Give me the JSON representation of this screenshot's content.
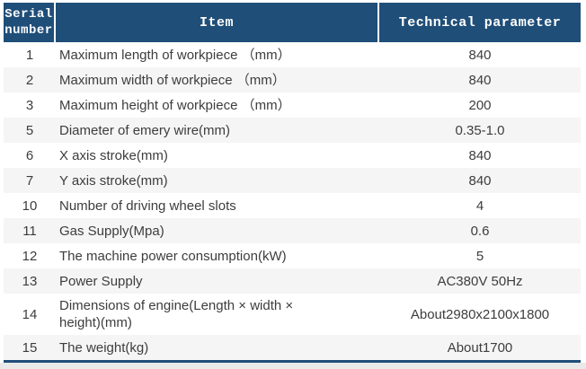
{
  "table": {
    "columns": {
      "serial": "Serial number",
      "item": "Item",
      "value": "Technical parameter"
    },
    "rows": [
      {
        "serial": "1",
        "item": "Maximum length of workpiece （mm）",
        "value": "840"
      },
      {
        "serial": "2",
        "item": "Maximum width of workpiece （mm）",
        "value": "840"
      },
      {
        "serial": "3",
        "item": "Maximum height of workpiece （mm）",
        "value": "200"
      },
      {
        "serial": "5",
        "item": "Diameter of emery wire(mm)",
        "value": "0.35-1.0"
      },
      {
        "serial": "6",
        "item": "X axis stroke(mm)",
        "value": "840"
      },
      {
        "serial": "7",
        "item": "Y axis stroke(mm)",
        "value": "840"
      },
      {
        "serial": "10",
        "item": "Number of driving wheel slots",
        "value": "4"
      },
      {
        "serial": "11",
        "item": "Gas Supply(Mpa)",
        "value": "0.6"
      },
      {
        "serial": "12",
        "item": "The machine power consumption(kW)",
        "value": "5"
      },
      {
        "serial": "13",
        "item": "Power Supply",
        "value": "AC380V 50Hz"
      },
      {
        "serial": "14",
        "item": "Dimensions of engine(Length × width × height)(mm)",
        "value": "About2980x2100x1800"
      },
      {
        "serial": "15",
        "item": "The weight(kg)",
        "value": "About1700"
      }
    ]
  },
  "colors": {
    "header_bg": "#1f4e79",
    "header_text": "#ffffff",
    "stripe": "#f5f5f6",
    "text": "#3d3d3d",
    "bottom_bar": "#1f4e79"
  }
}
